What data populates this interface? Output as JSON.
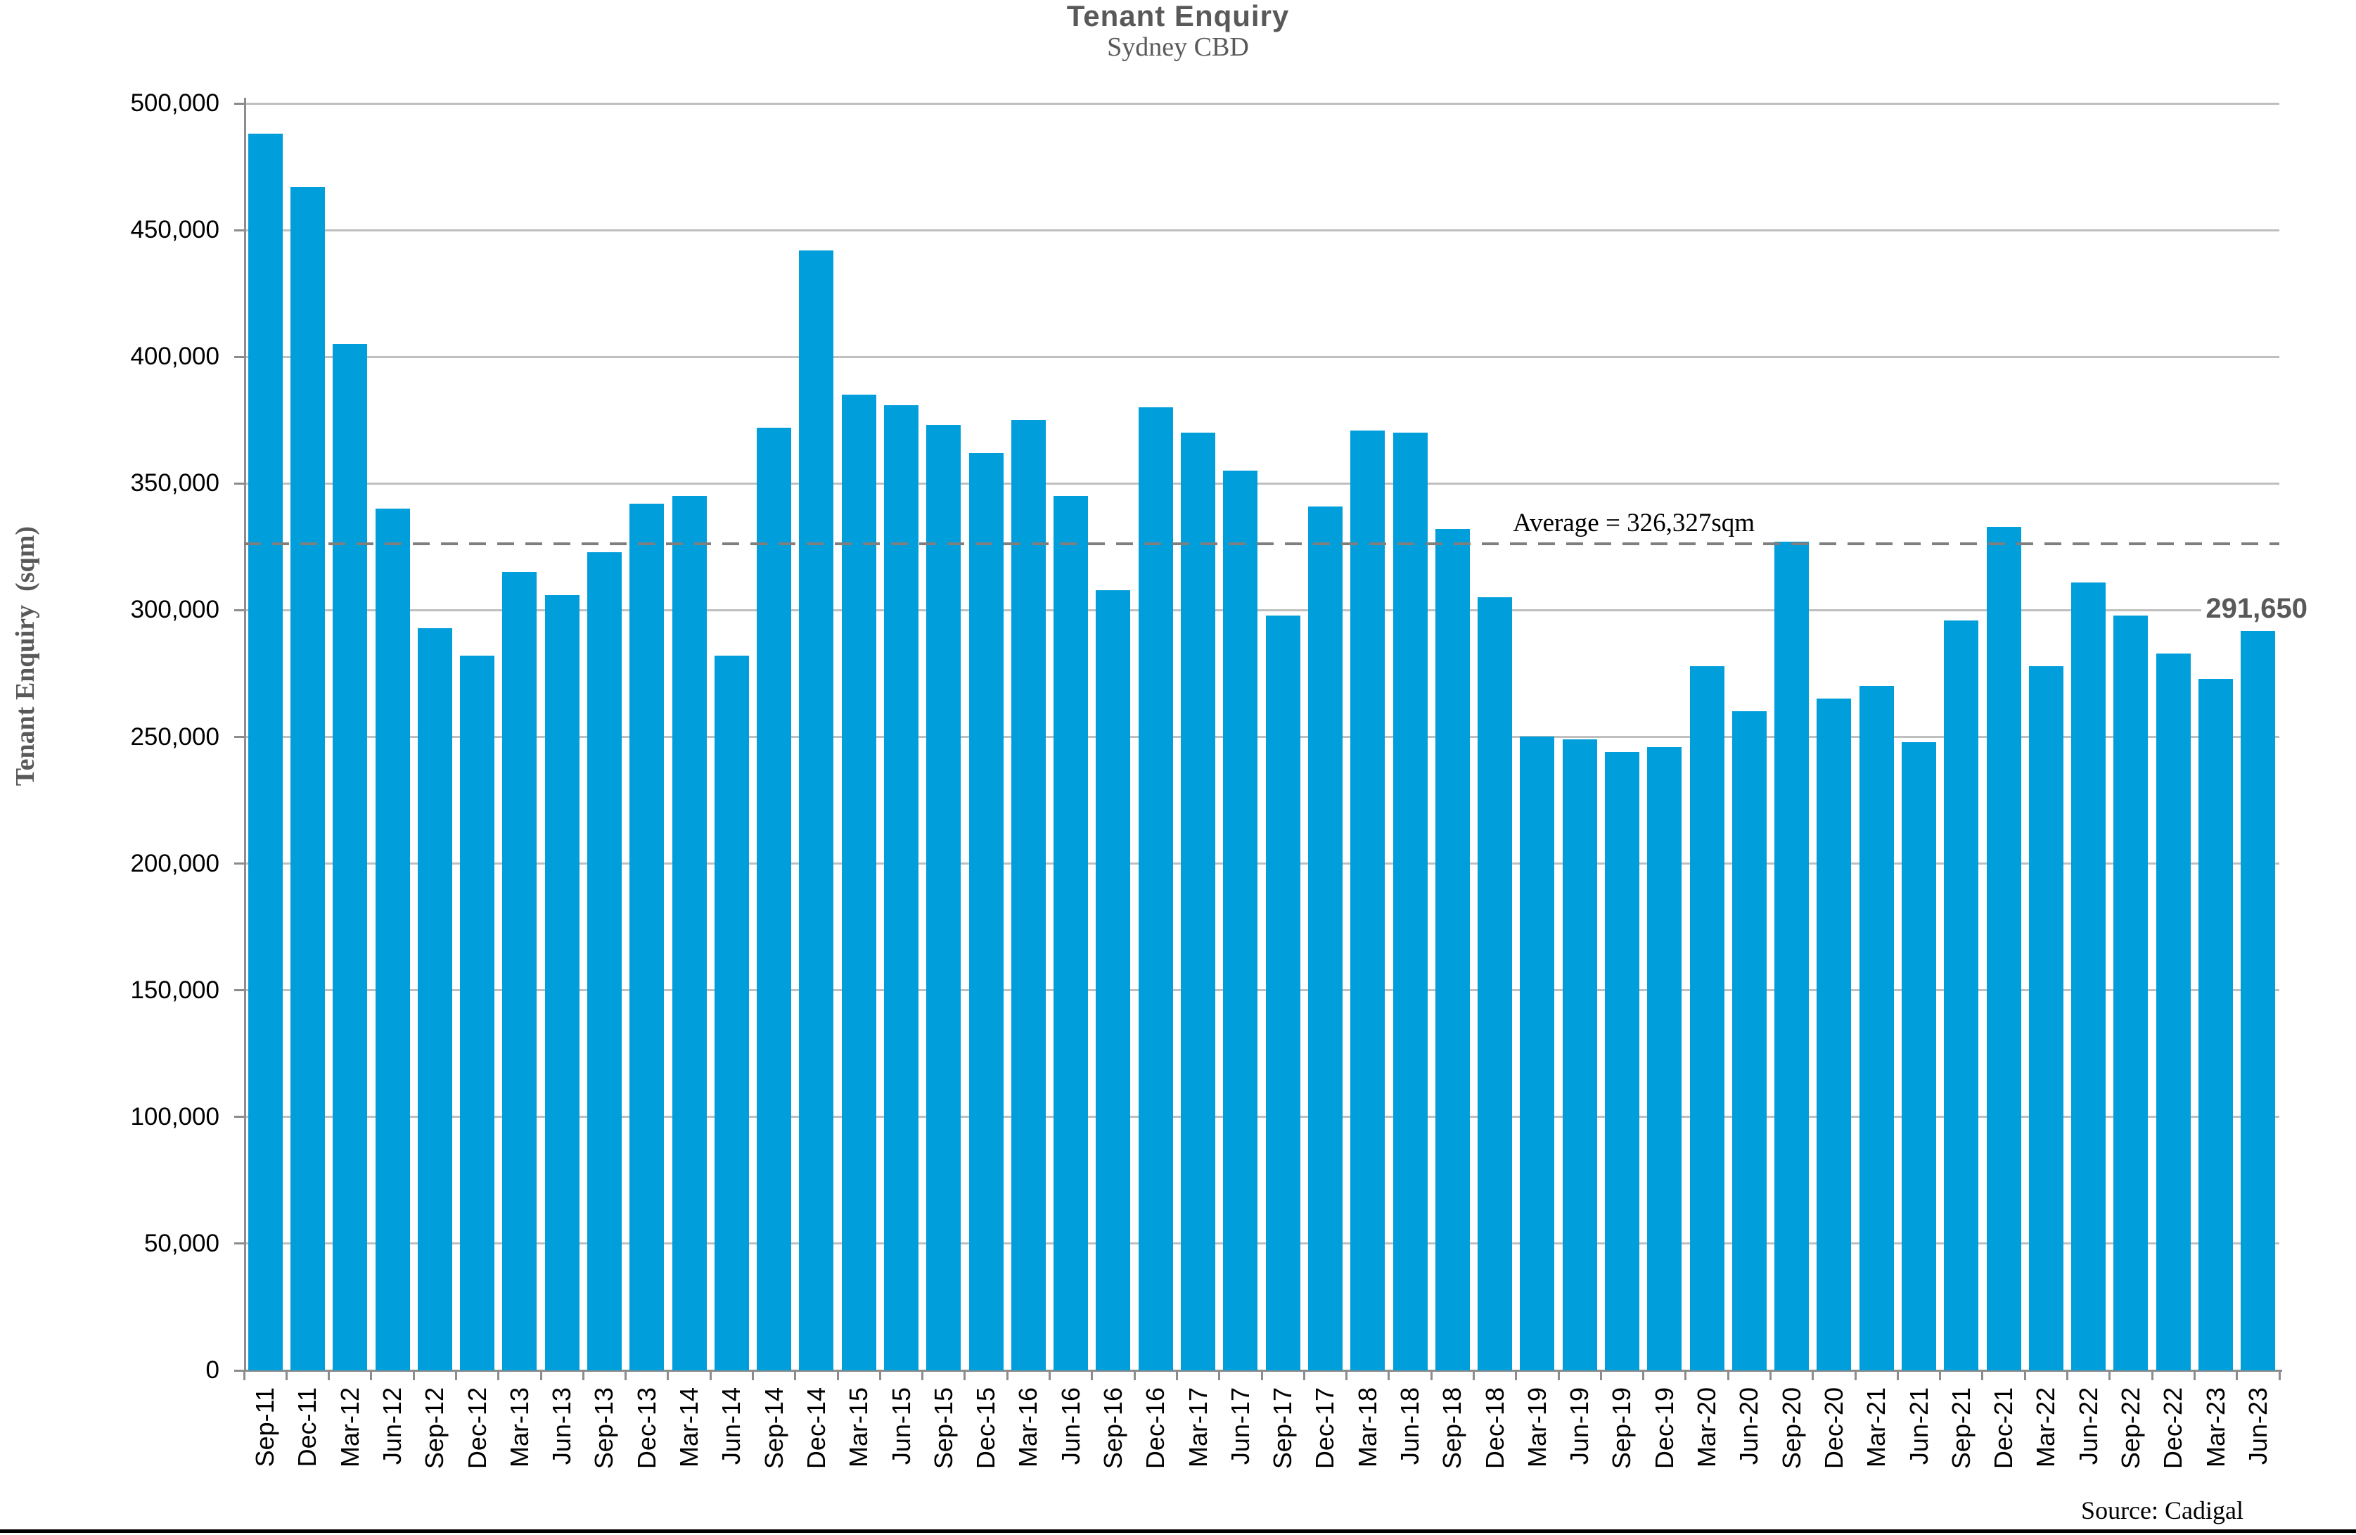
{
  "title": "Tenant Enquiry",
  "subtitle": "Sydney CBD",
  "y_axis_title": "Tenant Enquiry  (sqm)",
  "average_label": "Average = 326,327sqm",
  "last_value_label": "291,650",
  "source": "Source: Cadigal",
  "colors": {
    "bar": "#009EDB",
    "grid": "#BFBFBF",
    "axis": "#8C8C8C",
    "average_line": "#7F7F7F",
    "title_text": "#595959",
    "tick_text": "#000000"
  },
  "y_tick_labels": [
    "0",
    "50,000",
    "100,000",
    "150,000",
    "200,000",
    "250,000",
    "300,000",
    "350,000",
    "400,000",
    "450,000",
    "500,000"
  ],
  "chart_data": {
    "type": "bar",
    "title": "Tenant Enquiry",
    "subtitle": "Sydney CBD",
    "xlabel": "",
    "ylabel": "Tenant Enquiry (sqm)",
    "ylim": [
      0,
      500000
    ],
    "ytick_step": 50000,
    "grid": "horizontal",
    "legend": "none",
    "average_line": 326327,
    "last_point_label": 291650,
    "categories": [
      "Sep-11",
      "Dec-11",
      "Mar-12",
      "Jun-12",
      "Sep-12",
      "Dec-12",
      "Mar-13",
      "Jun-13",
      "Sep-13",
      "Dec-13",
      "Mar-14",
      "Jun-14",
      "Sep-14",
      "Dec-14",
      "Mar-15",
      "Jun-15",
      "Sep-15",
      "Dec-15",
      "Mar-16",
      "Jun-16",
      "Sep-16",
      "Dec-16",
      "Mar-17",
      "Jun-17",
      "Sep-17",
      "Dec-17",
      "Mar-18",
      "Jun-18",
      "Sep-18",
      "Dec-18",
      "Mar-19",
      "Jun-19",
      "Sep-19",
      "Dec-19",
      "Mar-20",
      "Jun-20",
      "Sep-20",
      "Dec-20",
      "Mar-21",
      "Jun-21",
      "Sep-21",
      "Dec-21",
      "Mar-22",
      "Jun-22",
      "Sep-22",
      "Dec-22",
      "Mar-23",
      "Jun-23"
    ],
    "values": [
      488000,
      467000,
      405000,
      340000,
      293000,
      282000,
      315000,
      306000,
      323000,
      342000,
      345000,
      282000,
      372000,
      442000,
      385000,
      381000,
      373000,
      362000,
      375000,
      345000,
      308000,
      380000,
      370000,
      355000,
      298000,
      341000,
      371000,
      370000,
      332000,
      305000,
      250000,
      249000,
      244000,
      246000,
      278000,
      260000,
      327000,
      265000,
      270000,
      248000,
      296000,
      333000,
      278000,
      311000,
      298000,
      283000,
      273000,
      291650
    ]
  }
}
